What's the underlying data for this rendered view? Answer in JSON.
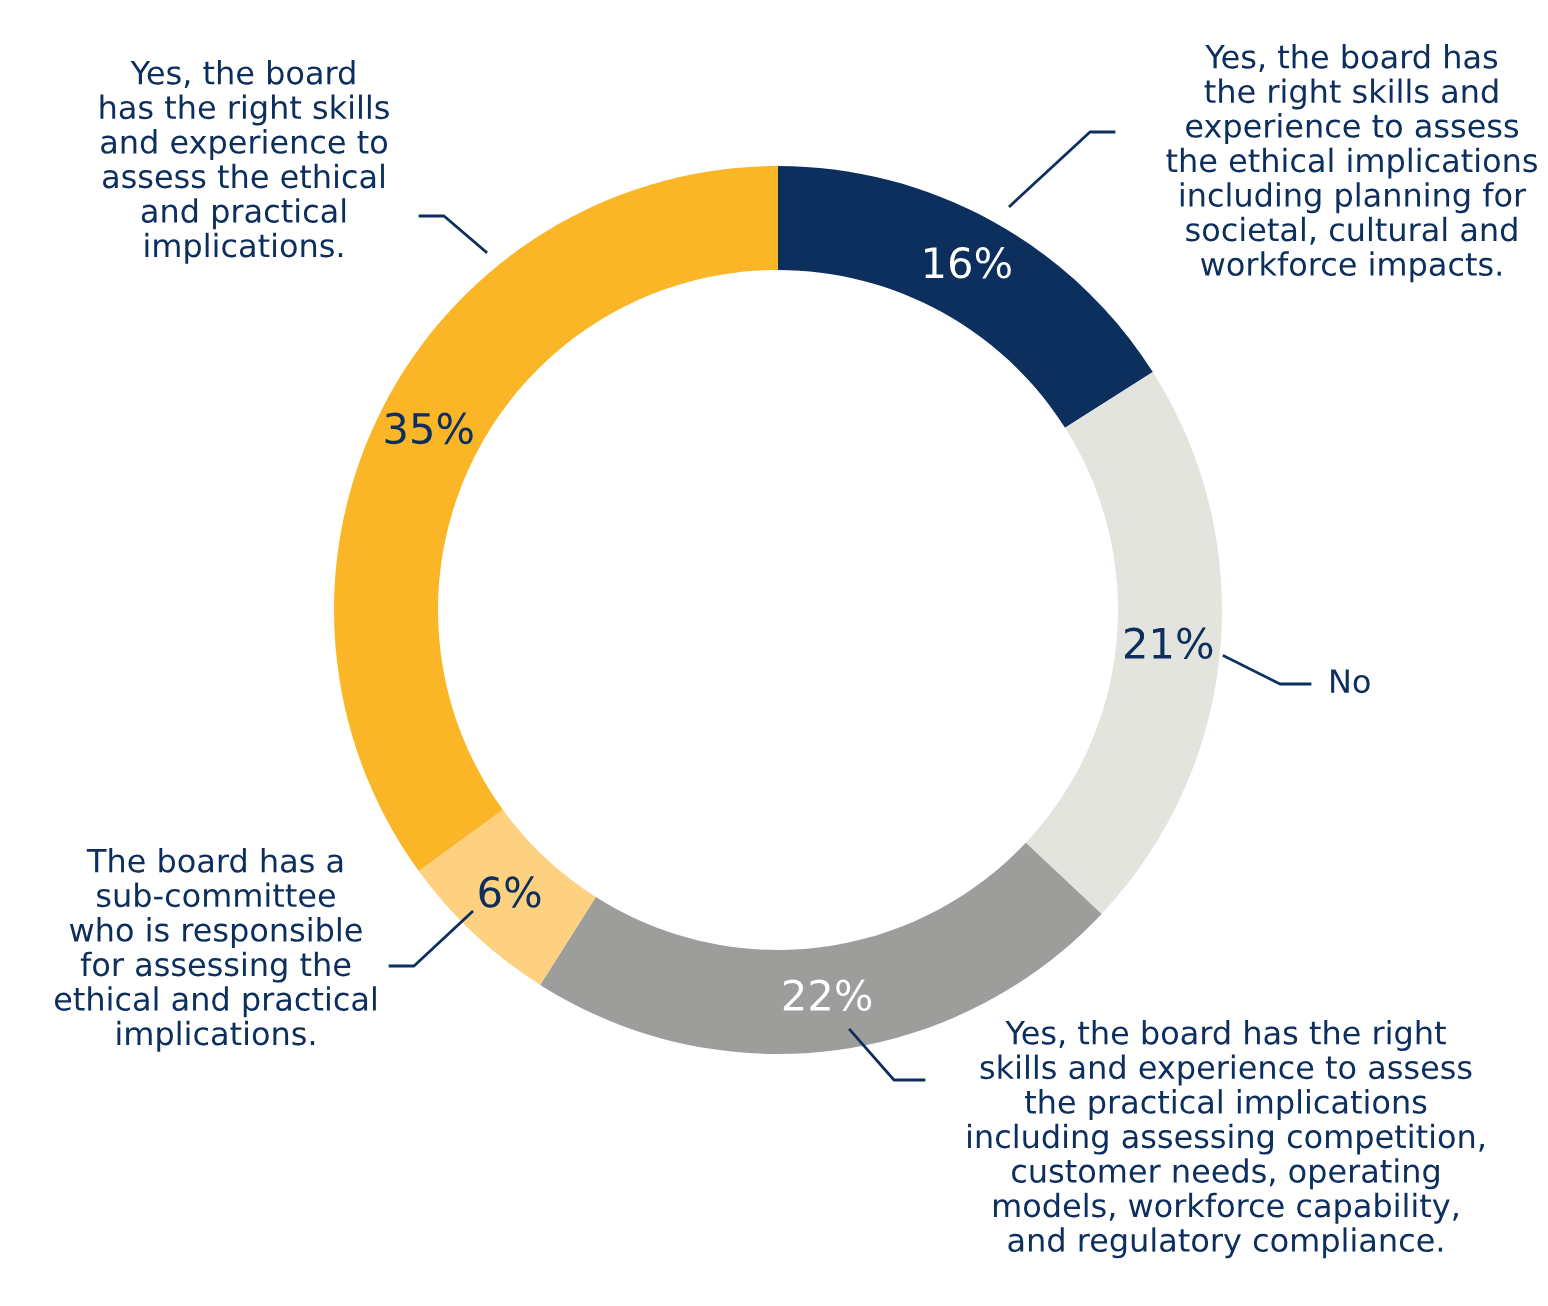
{
  "chart_data": {
    "type": "donut",
    "categories": [
      "Yes, the board has\nthe right skills and\nexperience to assess\nthe ethical implications\nincluding planning for\nsocietal, cultural and\nworkforce impacts.",
      "No",
      "Yes, the board has the right\nskills and experience to assess\nthe practical implications\nincluding assessing competition,\ncustomer needs, operating\nmodels, workforce capability,\nand regulatory compliance.",
      "The board has a\nsub-committee\nwho is responsible\nfor assessing the\nethical and practical\nimplications.",
      "Yes, the board\nhas the right skills\nand experience to\nassess the ethical\nand practical\nimplications."
    ],
    "values": [
      16,
      21,
      22,
      6,
      35
    ],
    "colors": [
      "#0d2f5e",
      "#e4e4df",
      "#9d9d9b",
      "#fdd180",
      "#fbb627"
    ],
    "value_labels": [
      "16%",
      "21%",
      "22%",
      "6%",
      "35%"
    ],
    "legend": false
  }
}
